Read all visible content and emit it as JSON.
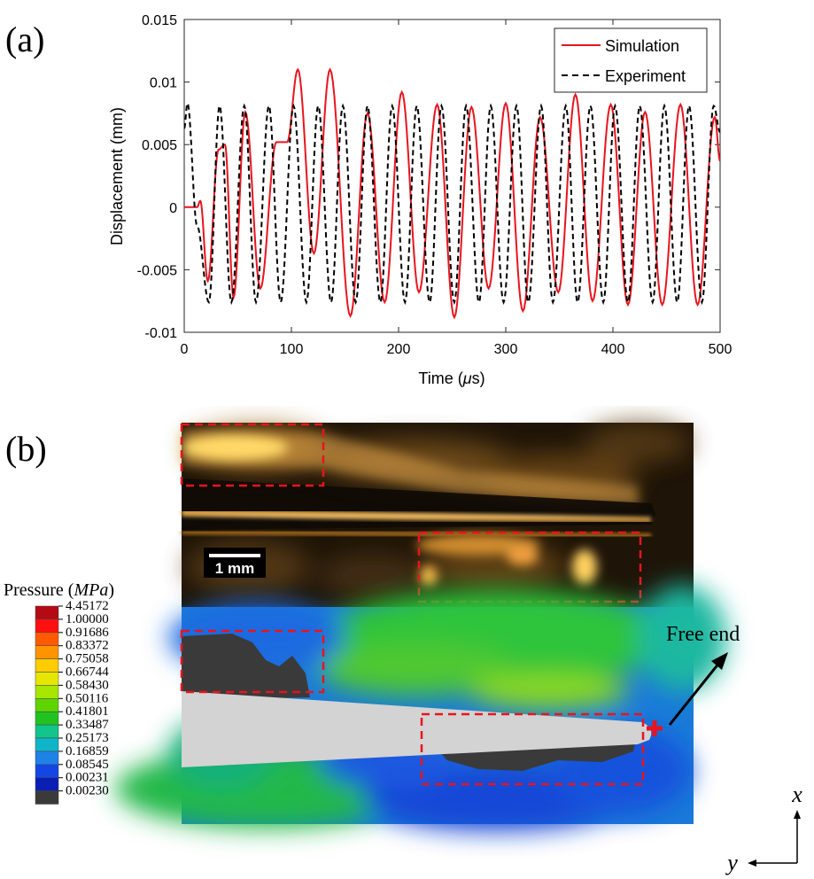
{
  "panel_a": {
    "label": "(a)",
    "chart_data": {
      "type": "line",
      "xlabel_main": "Time (",
      "xlabel_unit": "μ",
      "xlabel_end": "s)",
      "ylabel": "Displacement (mm)",
      "xlim": [
        0,
        500
      ],
      "ylim": [
        -0.01,
        0.015
      ],
      "x_ticks": [
        0,
        100,
        200,
        300,
        400,
        500
      ],
      "x_tick_labels": [
        "0",
        "100",
        "200",
        "300",
        "400",
        "500"
      ],
      "y_ticks": [
        -0.01,
        -0.005,
        0,
        0.005,
        0.01,
        0.015
      ],
      "y_tick_labels": [
        "-0.01",
        "-0.005",
        "0",
        "0.005",
        "0.01",
        "0.015"
      ],
      "grid": false,
      "legend_position": "top-right",
      "series": [
        {
          "name": "Simulation",
          "color": "#e8141e",
          "style": "solid",
          "x": [
            0,
            12,
            15,
            22,
            32,
            38,
            46,
            57,
            71,
            86,
            96,
            106,
            121,
            136,
            155,
            171,
            187,
            203,
            219,
            236,
            252,
            268,
            284,
            300,
            316,
            332,
            349,
            365,
            381,
            398,
            414,
            430,
            446,
            463,
            479,
            495,
            500
          ],
          "y": [
            0,
            0,
            0.0005,
            -0.0059,
            0.0046,
            0.005,
            -0.0072,
            0.0076,
            -0.0065,
            0.0052,
            0.0052,
            0.011,
            -0.0037,
            0.011,
            -0.0087,
            0.0075,
            -0.0076,
            0.0092,
            -0.0068,
            0.0082,
            -0.0088,
            0.008,
            -0.0065,
            0.0083,
            -0.0083,
            0.0072,
            -0.0068,
            0.009,
            -0.0075,
            0.0082,
            -0.0078,
            0.0076,
            -0.0078,
            0.0082,
            -0.0078,
            0.0072,
            0.0037
          ]
        },
        {
          "name": "Experiment",
          "color": "#000000",
          "style": "dashed",
          "x": [
            0,
            3,
            12,
            23,
            33,
            44,
            56,
            67,
            79,
            90,
            102,
            114,
            125,
            137,
            148,
            160,
            171,
            183,
            194,
            206,
            217,
            229,
            240,
            252,
            263,
            275,
            286,
            298,
            310,
            321,
            333,
            344,
            356,
            367,
            379,
            391,
            402,
            414,
            425,
            437,
            448,
            460,
            471,
            483,
            494,
            500
          ],
          "y": [
            0.0063,
            0.0083,
            -0.0015,
            -0.0076,
            0.0081,
            -0.0076,
            0.0081,
            -0.0076,
            0.0081,
            -0.0076,
            0.0081,
            -0.0076,
            0.0081,
            -0.0076,
            0.0081,
            -0.0076,
            0.0081,
            -0.0076,
            0.0081,
            -0.0076,
            0.0081,
            -0.0076,
            0.0081,
            -0.0076,
            0.0081,
            -0.0076,
            0.0081,
            -0.0076,
            0.0081,
            -0.0076,
            0.0081,
            -0.0076,
            0.0081,
            -0.0076,
            0.0081,
            -0.0076,
            0.0081,
            -0.0076,
            0.0081,
            -0.0076,
            0.0081,
            -0.0076,
            0.0081,
            -0.0076,
            0.0081,
            0.006
          ]
        }
      ]
    }
  },
  "panel_b": {
    "label": "(b)",
    "scale_bar_label": "1 mm",
    "colorbar_title": "Pressure (",
    "colorbar_unit": "MPa",
    "colorbar_close": ")",
    "colorbar_values": [
      "4.45172",
      "1.00000",
      "0.91686",
      "0.83372",
      "0.75058",
      "0.66744",
      "0.58430",
      "0.50116",
      "0.41801",
      "0.33487",
      "0.25173",
      "0.16859",
      "0.08545",
      "0.00231",
      "0.00230"
    ],
    "colorbar_colors": [
      "#b40a14",
      "#ff1010",
      "#ff5a00",
      "#ff9400",
      "#ffcc00",
      "#e6e600",
      "#a6e600",
      "#5fd400",
      "#22c320",
      "#12c58a",
      "#10b4c8",
      "#1e82e6",
      "#1446e6",
      "#0a1eb4",
      "#3a3a3a"
    ],
    "annotation": "Free end",
    "axis_x": "x",
    "axis_y": "y"
  }
}
